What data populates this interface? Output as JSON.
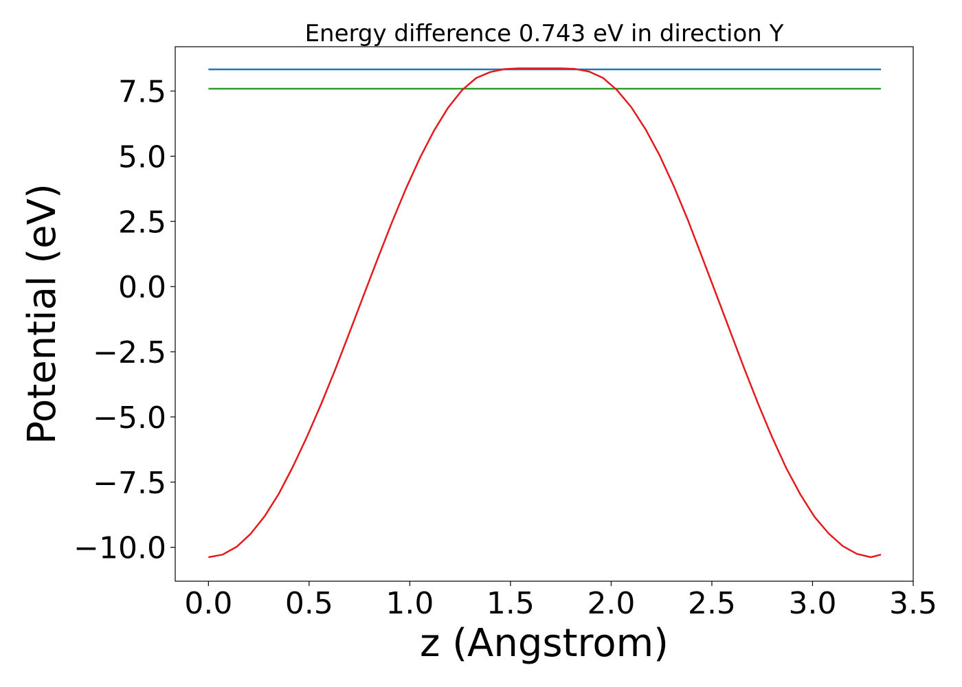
{
  "chart_data": {
    "type": "line",
    "title": "Energy difference 0.743 eV in direction Y",
    "xlabel": "z (Angstrom)",
    "ylabel": "Potential (eV)",
    "xlim": [
      -0.165,
      3.5
    ],
    "ylim": [
      -11.3,
      9.2
    ],
    "xticks": [
      0.0,
      0.5,
      1.0,
      1.5,
      2.0,
      2.5,
      3.0,
      3.5
    ],
    "xtick_labels": [
      "0.0",
      "0.5",
      "1.0",
      "1.5",
      "2.0",
      "2.5",
      "3.0",
      "3.5"
    ],
    "yticks": [
      7.5,
      5.0,
      2.5,
      0.0,
      -2.5,
      -5.0,
      -7.5,
      -10.0
    ],
    "ytick_labels": [
      "7.5",
      "5.0",
      "2.5",
      "0.0",
      "−2.5",
      "−5.0",
      "−7.5",
      "−10.0"
    ],
    "grid": false,
    "series": [
      {
        "color": "#1f77b4",
        "x": [
          0.0,
          3.34
        ],
        "y": [
          8.33,
          8.33
        ]
      },
      {
        "color": "#2ca02c",
        "x": [
          0.0,
          3.34
        ],
        "y": [
          7.59,
          7.59
        ]
      },
      {
        "color": "#e31a1c",
        "x": [
          0.0,
          0.07,
          0.14,
          0.21,
          0.28,
          0.35,
          0.42,
          0.49,
          0.56,
          0.63,
          0.7,
          0.77,
          0.84,
          0.91,
          0.98,
          1.05,
          1.12,
          1.19,
          1.26,
          1.33,
          1.4,
          1.47,
          1.54,
          1.61,
          1.68,
          1.75,
          1.82,
          1.89,
          1.96,
          2.03,
          2.1,
          2.17,
          2.24,
          2.31,
          2.38,
          2.45,
          2.52,
          2.59,
          2.66,
          2.73,
          2.8,
          2.87,
          2.94,
          3.01,
          3.08,
          3.15,
          3.22,
          3.29,
          3.34
        ],
        "y": [
          -10.38,
          -10.28,
          -9.98,
          -9.48,
          -8.8,
          -7.94,
          -6.9,
          -5.75,
          -4.5,
          -3.17,
          -1.77,
          -0.35,
          1.06,
          2.44,
          3.74,
          4.93,
          5.98,
          6.86,
          7.54,
          8.0,
          8.23,
          8.34,
          8.37,
          8.37,
          8.37,
          8.37,
          8.35,
          8.25,
          8.0,
          7.53,
          6.88,
          6.04,
          5.04,
          3.87,
          2.57,
          1.16,
          -0.26,
          -1.69,
          -3.12,
          -4.5,
          -5.79,
          -6.97,
          -7.98,
          -8.83,
          -9.47,
          -9.95,
          -10.25,
          -10.38,
          -10.28
        ]
      }
    ]
  }
}
